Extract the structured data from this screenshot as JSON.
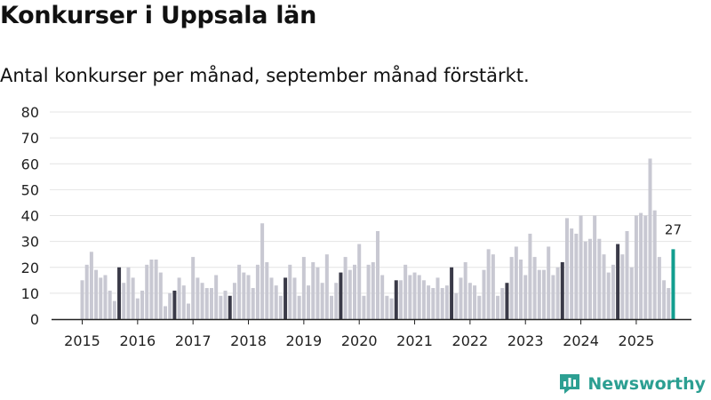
{
  "title": "Konkurser i Uppsala län",
  "subtitle": "Antal konkurser per månad, september månad förstärkt.",
  "brand": {
    "name": "Newsworthy",
    "icon": "newsworthy-logo-icon",
    "color": "#2c9f92"
  },
  "colors": {
    "bar": "#c8c8d2",
    "september": "#3a3a48",
    "latest": "#129e8f",
    "grid": "#e4e4e4",
    "axis": "#222222"
  },
  "chart_data": {
    "type": "bar",
    "title": "Konkurser i Uppsala län",
    "subtitle": "Antal konkurser per månad, september månad förstärkt.",
    "xlabel": "",
    "ylabel": "",
    "ylim": [
      0,
      80
    ],
    "yticks": [
      "0",
      "10",
      "20",
      "30",
      "40",
      "50",
      "60",
      "70",
      "80"
    ],
    "years": [
      "2015",
      "2016",
      "2017",
      "2018",
      "2019",
      "2020",
      "2021",
      "2022",
      "2023",
      "2024",
      "2025"
    ],
    "start": "2015-01",
    "highlight_month": "september",
    "last_label": "27",
    "values": [
      15,
      21,
      26,
      19,
      16,
      17,
      11,
      7,
      20,
      14,
      20,
      16,
      8,
      11,
      21,
      23,
      23,
      18,
      5,
      10,
      11,
      16,
      13,
      6,
      24,
      16,
      14,
      12,
      12,
      17,
      9,
      11,
      9,
      14,
      21,
      18,
      17,
      12,
      21,
      37,
      22,
      16,
      13,
      9,
      16,
      21,
      16,
      9,
      24,
      13,
      22,
      20,
      14,
      25,
      9,
      14,
      18,
      24,
      19,
      21,
      29,
      9,
      21,
      22,
      34,
      17,
      9,
      8,
      15,
      15,
      21,
      17,
      18,
      17,
      15,
      13,
      12,
      16,
      12,
      13,
      20,
      10,
      16,
      22,
      14,
      13,
      9,
      19,
      27,
      25,
      9,
      12,
      14,
      24,
      28,
      23,
      17,
      33,
      24,
      19,
      19,
      28,
      17,
      20,
      22,
      39,
      35,
      33,
      40,
      30,
      31,
      40,
      31,
      25,
      18,
      21,
      29,
      25,
      34,
      20,
      40,
      41,
      40,
      62,
      42,
      24,
      15,
      12,
      27
    ]
  }
}
